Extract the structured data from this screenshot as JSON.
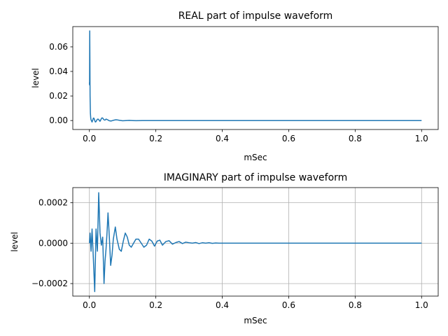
{
  "chart_data": [
    {
      "type": "line",
      "title": "REAL part of impulse waveform",
      "xlabel": "mSec",
      "ylabel": "level",
      "xlim": [
        -0.05,
        1.05
      ],
      "ylim": [
        -0.0073,
        0.0765
      ],
      "xticks": [
        0.0,
        0.2,
        0.4,
        0.6,
        0.8,
        1.0
      ],
      "xtick_labels": [
        "0.0",
        "0.2",
        "0.4",
        "0.6",
        "0.8",
        "1.0"
      ],
      "yticks": [
        0.0,
        0.02,
        0.04,
        0.06
      ],
      "ytick_labels": [
        "0.00",
        "0.02",
        "0.04",
        "0.06"
      ],
      "grid": false,
      "color": "#1f77b4",
      "series": [
        {
          "x": [
            0.0,
            0.0005,
            0.001,
            0.0015,
            0.002,
            0.003,
            0.004,
            0.005,
            0.006,
            0.008,
            0.01,
            0.012,
            0.014,
            0.016,
            0.018,
            0.02,
            0.022,
            0.024,
            0.026,
            0.028,
            0.03,
            0.032,
            0.034,
            0.036,
            0.038,
            0.04,
            0.042,
            0.045,
            0.048,
            0.05,
            0.055,
            0.06,
            0.065,
            0.07,
            0.075,
            0.08,
            0.085,
            0.09,
            0.1,
            0.11,
            0.12,
            0.13,
            0.14,
            0.16,
            0.18,
            0.2,
            0.25,
            0.3,
            0.4,
            0.6,
            0.8,
            1.0
          ],
          "y": [
            0.031,
            0.029,
            0.073,
            0.05,
            0.02,
            0.006,
            0.002,
            0.0005,
            0.0,
            -0.0012,
            0.0003,
            0.002,
            0.0018,
            0.0,
            -0.0012,
            -0.0008,
            0.0002,
            0.001,
            0.0012,
            0.0008,
            0.0,
            -0.0006,
            0.0004,
            0.0016,
            0.0022,
            0.002,
            0.0012,
            0.0004,
            0.0005,
            0.0012,
            0.0006,
            -0.0002,
            -0.0004,
            0.0,
            0.0004,
            0.0006,
            0.0005,
            0.0002,
            -0.0002,
            0.0,
            0.0001,
            0.0,
            -0.0001,
            0.0,
            0.0,
            0.0,
            0.0,
            0.0,
            0.0,
            0.0,
            0.0,
            0.0
          ]
        }
      ]
    },
    {
      "type": "line",
      "title": "IMAGINARY part of impulse waveform",
      "xlabel": "mSec",
      "ylabel": "level",
      "xlim": [
        -0.05,
        1.05
      ],
      "ylim": [
        -0.000262,
        0.000275
      ],
      "xticks": [
        0.0,
        0.2,
        0.4,
        0.6,
        0.8,
        1.0
      ],
      "xtick_labels": [
        "0.0",
        "0.2",
        "0.4",
        "0.6",
        "0.8",
        "1.0"
      ],
      "yticks": [
        -0.0002,
        0.0,
        0.0002
      ],
      "ytick_labels": [
        "−0.0002",
        "0.0000",
        "0.0002"
      ],
      "grid": true,
      "color": "#1f77b4",
      "series": [
        {
          "x": [
            0.0,
            0.002,
            0.005,
            0.008,
            0.012,
            0.016,
            0.02,
            0.024,
            0.028,
            0.032,
            0.036,
            0.04,
            0.044,
            0.047,
            0.05,
            0.053,
            0.056,
            0.06,
            0.064,
            0.068,
            0.072,
            0.078,
            0.083,
            0.09,
            0.096,
            0.102,
            0.108,
            0.114,
            0.12,
            0.126,
            0.133,
            0.14,
            0.148,
            0.156,
            0.164,
            0.172,
            0.18,
            0.188,
            0.196,
            0.204,
            0.212,
            0.22,
            0.23,
            0.24,
            0.25,
            0.26,
            0.27,
            0.28,
            0.29,
            0.3,
            0.31,
            0.32,
            0.33,
            0.34,
            0.35,
            0.36,
            0.37,
            0.38,
            0.39,
            0.4,
            0.42,
            0.44,
            0.46,
            0.48,
            0.5,
            0.6,
            0.8,
            1.0
          ],
          "y": [
            0.0,
            5e-05,
            -4e-05,
            7e-05,
            -8e-05,
            -0.00024,
            7e-05,
            -4e-05,
            0.00025,
            5e-05,
            -1e-05,
            3e-05,
            -0.0002,
            -9e-05,
            -3e-05,
            5e-05,
            0.00015,
            3e-05,
            -0.00011,
            -6e-05,
            2e-05,
            8e-05,
            2e-05,
            -3e-05,
            -4e-05,
            1e-05,
            5e-05,
            3e-05,
            -1e-05,
            -2e-05,
            0.0,
            2e-05,
            2e-05,
            0.0,
            -2e-05,
            -1e-05,
            2e-05,
            1e-05,
            -1.5e-05,
            1e-05,
            1.5e-05,
            -1e-05,
            8e-06,
            1.2e-05,
            -5e-06,
            3e-06,
            8e-06,
            -2e-06,
            5e-06,
            2e-06,
            0.0,
            3e-06,
            -2e-06,
            2e-06,
            0.0,
            2e-06,
            -1e-06,
            1e-06,
            0.0,
            0.0,
            0.0,
            0.0,
            0.0,
            0.0,
            0.0,
            0.0,
            0.0,
            0.0
          ]
        }
      ]
    }
  ]
}
